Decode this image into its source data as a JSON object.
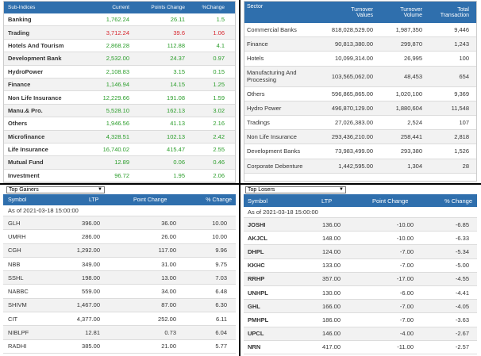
{
  "subindices": {
    "headers": [
      "Sub-Indices",
      "Current",
      "Points Change",
      "%Change"
    ],
    "rows": [
      {
        "name": "Banking",
        "current": "1,762.24",
        "change": "26.11",
        "pct": "1.5",
        "dir": "up"
      },
      {
        "name": "Trading",
        "current": "3,712.24",
        "change": "39.6",
        "pct": "1.06",
        "dir": "down"
      },
      {
        "name": "Hotels And Tourism",
        "current": "2,868.28",
        "change": "112.88",
        "pct": "4.1",
        "dir": "up"
      },
      {
        "name": "Development Bank",
        "current": "2,532.00",
        "change": "24.37",
        "pct": "0.97",
        "dir": "up"
      },
      {
        "name": "HydroPower",
        "current": "2,108.83",
        "change": "3.15",
        "pct": "0.15",
        "dir": "up"
      },
      {
        "name": "Finance",
        "current": "1,146.94",
        "change": "14.15",
        "pct": "1.25",
        "dir": "up"
      },
      {
        "name": "Non Life Insurance",
        "current": "12,229.66",
        "change": "191.08",
        "pct": "1.59",
        "dir": "up"
      },
      {
        "name": "Manu.& Pro.",
        "current": "5,528.10",
        "change": "162.13",
        "pct": "3.02",
        "dir": "up"
      },
      {
        "name": "Others",
        "current": "1,946.56",
        "change": "41.13",
        "pct": "2.16",
        "dir": "up"
      },
      {
        "name": "Microfinance",
        "current": "4,328.51",
        "change": "102.13",
        "pct": "2.42",
        "dir": "up"
      },
      {
        "name": "Life Insurance",
        "current": "16,740.02",
        "change": "415.47",
        "pct": "2.55",
        "dir": "up"
      },
      {
        "name": "Mutual Fund",
        "current": "12.89",
        "change": "0.06",
        "pct": "0.46",
        "dir": "up"
      },
      {
        "name": "Investment",
        "current": "96.72",
        "change": "1.95",
        "pct": "2.06",
        "dir": "up"
      }
    ]
  },
  "sector": {
    "headers": [
      "Sector",
      "Turnover Values",
      "Turnover Volume",
      "Total Transaction"
    ],
    "rows": [
      {
        "name": "Commercial Banks",
        "value": "818,028,529.00",
        "volume": "1,987,350",
        "tx": "9,446"
      },
      {
        "name": "Finance",
        "value": "90,813,380.00",
        "volume": "299,870",
        "tx": "1,243"
      },
      {
        "name": "Hotels",
        "value": "10,099,314.00",
        "volume": "26,995",
        "tx": "100"
      },
      {
        "name": "Manufacturing And Processing",
        "value": "103,565,062.00",
        "volume": "48,453",
        "tx": "654"
      },
      {
        "name": "Others",
        "value": "596,865,865.00",
        "volume": "1,020,100",
        "tx": "9,369"
      },
      {
        "name": "Hydro Power",
        "value": "496,870,129.00",
        "volume": "1,880,604",
        "tx": "11,548"
      },
      {
        "name": "Tradings",
        "value": "27,026,383.00",
        "volume": "2,524",
        "tx": "107"
      },
      {
        "name": "Non Life Insurance",
        "value": "293,436,210.00",
        "volume": "258,441",
        "tx": "2,818"
      },
      {
        "name": "Development Banks",
        "value": "73,983,499.00",
        "volume": "293,380",
        "tx": "1,526"
      },
      {
        "name": "Corporate Debenture",
        "value": "1,442,595.00",
        "volume": "1,304",
        "tx": "28"
      }
    ]
  },
  "gainers": {
    "select": "Top Gainers",
    "headers": [
      "Symbol",
      "LTP",
      "Point Change",
      "% Change"
    ],
    "asof": "As of 2021-03-18 15:00:00",
    "rows": [
      {
        "sym": "GLH",
        "ltp": "396.00",
        "chg": "36.00",
        "pct": "10.00"
      },
      {
        "sym": "UMRH",
        "ltp": "286.00",
        "chg": "26.00",
        "pct": "10.00"
      },
      {
        "sym": "CGH",
        "ltp": "1,292.00",
        "chg": "117.00",
        "pct": "9.96"
      },
      {
        "sym": "NBB",
        "ltp": "349.00",
        "chg": "31.00",
        "pct": "9.75"
      },
      {
        "sym": "SSHL",
        "ltp": "198.00",
        "chg": "13.00",
        "pct": "7.03"
      },
      {
        "sym": "NABBC",
        "ltp": "559.00",
        "chg": "34.00",
        "pct": "6.48"
      },
      {
        "sym": "SHIVM",
        "ltp": "1,467.00",
        "chg": "87.00",
        "pct": "6.30"
      },
      {
        "sym": "CIT",
        "ltp": "4,377.00",
        "chg": "252.00",
        "pct": "6.11"
      },
      {
        "sym": "NIBLPF",
        "ltp": "12.81",
        "chg": "0.73",
        "pct": "6.04"
      },
      {
        "sym": "RADHI",
        "ltp": "385.00",
        "chg": "21.00",
        "pct": "5.77"
      }
    ]
  },
  "losers": {
    "select": "Top Losers",
    "headers": [
      "Symbol",
      "LTP",
      "Point Change",
      "% Change"
    ],
    "asof": "As of 2021-03-18 15:00:00",
    "rows": [
      {
        "sym": "JOSHI",
        "ltp": "136.00",
        "chg": "-10.00",
        "pct": "-6.85"
      },
      {
        "sym": "AKJCL",
        "ltp": "148.00",
        "chg": "-10.00",
        "pct": "-6.33"
      },
      {
        "sym": "DHPL",
        "ltp": "124.00",
        "chg": "-7.00",
        "pct": "-5.34"
      },
      {
        "sym": "KKHC",
        "ltp": "133.00",
        "chg": "-7.00",
        "pct": "-5.00"
      },
      {
        "sym": "RRHP",
        "ltp": "357.00",
        "chg": "-17.00",
        "pct": "-4.55"
      },
      {
        "sym": "UNHPL",
        "ltp": "130.00",
        "chg": "-6.00",
        "pct": "-4.41"
      },
      {
        "sym": "GHL",
        "ltp": "166.00",
        "chg": "-7.00",
        "pct": "-4.05"
      },
      {
        "sym": "PMHPL",
        "ltp": "186.00",
        "chg": "-7.00",
        "pct": "-3.63"
      },
      {
        "sym": "UPCL",
        "ltp": "146.00",
        "chg": "-4.00",
        "pct": "-2.67"
      },
      {
        "sym": "NRN",
        "ltp": "417.00",
        "chg": "-11.00",
        "pct": "-2.57"
      }
    ]
  },
  "colors": {
    "header": "#2f6fad",
    "up": "#2a9d2a",
    "down": "#d7262e"
  }
}
